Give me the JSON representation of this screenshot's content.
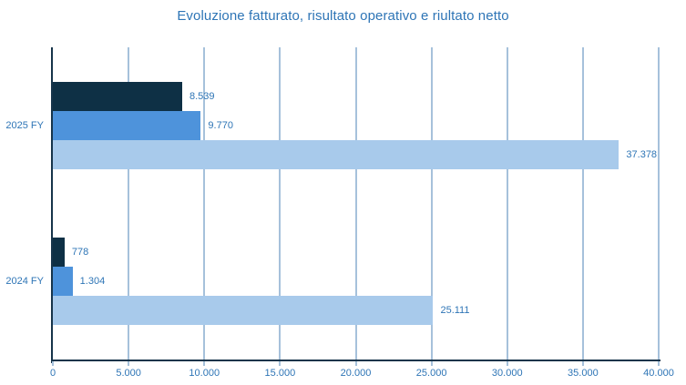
{
  "title": "Evoluzione fatturato, risultato operativo e riultato netto",
  "colors": {
    "title_text": "#2E75B6",
    "label_text": "#2E75B6",
    "axis": "#16344A",
    "gridline": "#A6C1DB",
    "background": "#FFFFFF",
    "bar_dark": "#0E3045",
    "bar_medium": "#4E93DB",
    "bar_light": "#A8CAEB"
  },
  "chart_data": {
    "type": "bar",
    "orientation": "horizontal",
    "title": "Evoluzione fatturato, risultato operativo e riultato netto",
    "categories": [
      "2025 FY",
      "2024 FY"
    ],
    "series": [
      {
        "name": "series-dark-top",
        "color": "#0E3045",
        "values": [
          8539,
          778
        ],
        "value_labels": [
          "8.539",
          "778"
        ]
      },
      {
        "name": "series-medium-middle",
        "color": "#4E93DB",
        "values": [
          9770,
          1304
        ],
        "value_labels": [
          "9.770",
          "1.304"
        ]
      },
      {
        "name": "series-light-bottom",
        "color": "#A8CAEB",
        "values": [
          37378,
          25111
        ],
        "value_labels": [
          "37.378",
          "25.111"
        ]
      }
    ],
    "xlim": [
      0,
      40000
    ],
    "x_ticks": [
      {
        "value": 0,
        "label": "0"
      },
      {
        "value": 5000,
        "label": "5.000"
      },
      {
        "value": 10000,
        "label": "10.000"
      },
      {
        "value": 15000,
        "label": "15.000"
      },
      {
        "value": 20000,
        "label": "20.000"
      },
      {
        "value": 25000,
        "label": "25.000"
      },
      {
        "value": 30000,
        "label": "30.000"
      },
      {
        "value": 35000,
        "label": "35.000"
      },
      {
        "value": 40000,
        "label": "40.000"
      }
    ],
    "grid": "vertical-only",
    "legend": "none"
  }
}
